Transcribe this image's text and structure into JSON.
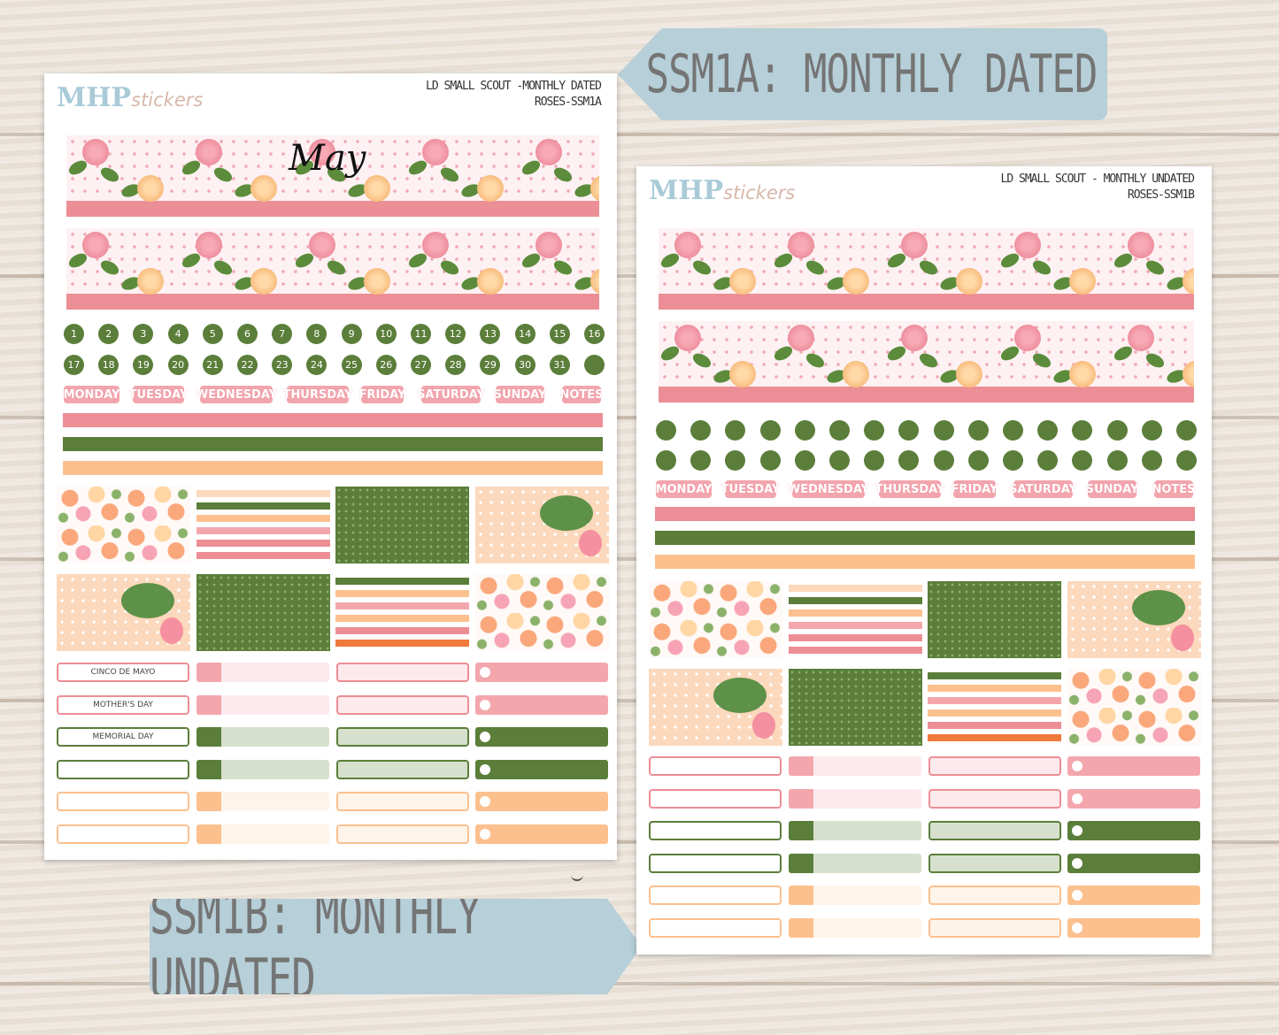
{
  "tags": {
    "dated": "SSM1A: MONTHLY DATED",
    "undated": "SSM1B: MONTHLY UNDATED"
  },
  "sheet_a": {
    "logo_main": "MHP",
    "logo_sub": "stickers",
    "header_line1": "LD SMALL SCOUT -MONTHLY DATED",
    "header_line2": "ROSES-SSM1A",
    "month": "May",
    "dates": [
      "1",
      "2",
      "3",
      "4",
      "5",
      "6",
      "7",
      "8",
      "9",
      "10",
      "11",
      "12",
      "13",
      "14",
      "15",
      "16",
      "17",
      "18",
      "19",
      "20",
      "21",
      "22",
      "23",
      "24",
      "25",
      "26",
      "27",
      "28",
      "29",
      "30",
      "31",
      ""
    ],
    "days": [
      "MONDAY",
      "TUESDAY",
      "WEDNESDAY",
      "THURSDAY",
      "FRIDAY",
      "SATURDAY",
      "SUNDAY",
      "NOTES"
    ],
    "holidays": [
      "CINCO DE MAYO",
      "MOTHER'S DAY",
      "MEMORIAL DAY"
    ]
  },
  "sheet_b": {
    "logo_main": "MHP",
    "logo_sub": "stickers",
    "header_line1": "LD SMALL SCOUT - MONTHLY UNDATED",
    "header_line2": "ROSES-SSM1B",
    "days": [
      "MONDAY",
      "TUESDAY",
      "WEDNESDAY",
      "THURSDAY",
      "FRIDAY",
      "SATURDAY",
      "SUNDAY",
      "NOTES"
    ]
  },
  "colors": {
    "pink": "#ec8e95",
    "light_pink": "#f3a7ad",
    "green": "#5b7e3a",
    "peach": "#fcc08f",
    "blue_tag": "#b6cfd8"
  }
}
